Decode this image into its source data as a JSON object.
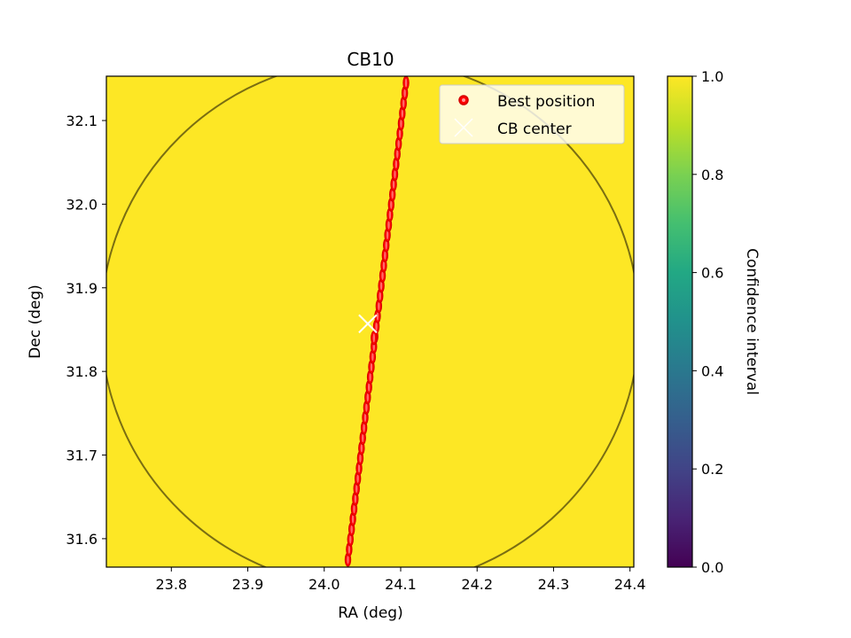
{
  "chart_data": {
    "type": "scatter",
    "title": "CB10",
    "xlabel": "RA (deg)",
    "ylabel": "Dec (deg)",
    "xlim": [
      23.715,
      24.405
    ],
    "ylim": [
      31.566,
      32.153
    ],
    "xticks": [
      23.8,
      23.9,
      24.0,
      24.1,
      24.2,
      24.3,
      24.4
    ],
    "xtick_labels": [
      "23.8",
      "23.9",
      "24.0",
      "24.1",
      "24.2",
      "24.3",
      "24.4"
    ],
    "yticks": [
      31.6,
      31.7,
      31.8,
      31.9,
      32.0,
      32.1
    ],
    "ytick_labels": [
      "31.6",
      "31.7",
      "31.8",
      "31.9",
      "32.0",
      "32.1"
    ],
    "grid": false,
    "background_value": 1.0,
    "circle": {
      "center": [
        24.06,
        31.857
      ],
      "radius_ra": 0.352,
      "radius_dec": 0.316,
      "color": "#7a6e12"
    },
    "best_position_track": {
      "ra_start": 24.031,
      "dec_start": 31.575,
      "ra_end": 24.107,
      "dec_end": 32.145,
      "points": 48,
      "extra_point": [
        24.065,
        31.84
      ]
    },
    "cb_center": [
      24.057,
      31.857
    ],
    "legend": {
      "placement": "top-right",
      "entries": [
        {
          "label": "Best position",
          "marker": "red-dot",
          "color": "#ff0000"
        },
        {
          "label": "CB center",
          "marker": "white-x",
          "color": "#ffffff"
        }
      ]
    },
    "colorbar": {
      "label": "Confidence interval",
      "range": [
        0.0,
        1.0
      ],
      "ticks": [
        0.0,
        0.2,
        0.4,
        0.6,
        0.8,
        1.0
      ],
      "tick_labels": [
        "0.0",
        "0.2",
        "0.4",
        "0.6",
        "0.8",
        "1.0"
      ],
      "colormap": "viridis"
    },
    "colors": {
      "field": "#fde725",
      "marker_fill": "#ff0000",
      "marker_edge": "#d40000",
      "cross": "#ffffff"
    }
  }
}
